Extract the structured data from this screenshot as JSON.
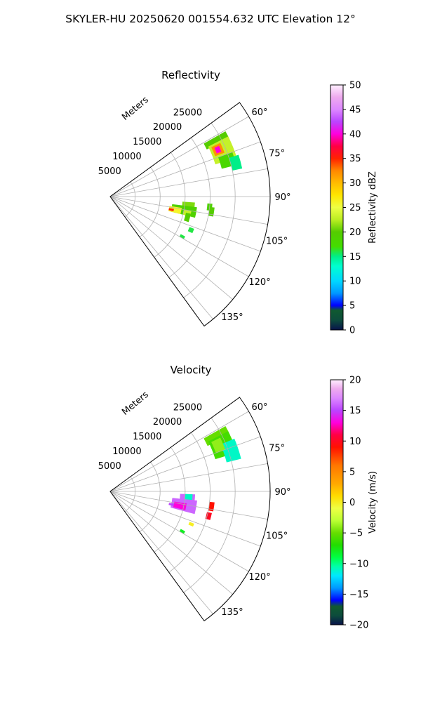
{
  "suptitle": "SKYLER-HU  20250620  001554.632 UTC Elevation 12°",
  "colors": {
    "grid": "#b0b0b0",
    "axis": "#000000"
  },
  "chart_data": [
    {
      "type": "polar-sector",
      "title": "Reflectivity",
      "range_label": "Meters",
      "radial_ticks": [
        5000,
        10000,
        15000,
        20000,
        25000
      ],
      "radial_max": 32000,
      "theta_range_deg": [
        54,
        144
      ],
      "theta_ticks": [
        "60°",
        "75°",
        "90°",
        "105°",
        "120°",
        "135°"
      ],
      "theta_tick_values": [
        60,
        75,
        90,
        105,
        120,
        135
      ],
      "grid": true,
      "colorbar": {
        "label": "Reflectivity dBZ",
        "min": 0,
        "max": 50,
        "ticks": [
          "0",
          "5",
          "10",
          "15",
          "20",
          "25",
          "30",
          "35",
          "40",
          "45",
          "50"
        ],
        "stops": [
          [
            0,
            "#08134a"
          ],
          [
            2,
            "#0d4c3c"
          ],
          [
            4,
            "#105a30"
          ],
          [
            5,
            "#0000ff"
          ],
          [
            7.5,
            "#0099ff"
          ],
          [
            10,
            "#00d8ff"
          ],
          [
            13,
            "#00ffd0"
          ],
          [
            15,
            "#00ee88"
          ],
          [
            17,
            "#44dd00"
          ],
          [
            20,
            "#55cc00"
          ],
          [
            22.5,
            "#bbee22"
          ],
          [
            25,
            "#eeff44"
          ],
          [
            27.5,
            "#ffe600"
          ],
          [
            30,
            "#ffbb00"
          ],
          [
            32.5,
            "#ff8800"
          ],
          [
            35,
            "#ff2200"
          ],
          [
            37.5,
            "#ff0044"
          ],
          [
            40,
            "#ff00dd"
          ],
          [
            42.5,
            "#bb44ff"
          ],
          [
            45,
            "#dd88ff"
          ],
          [
            47.5,
            "#eeaaee"
          ],
          [
            50,
            "#fff0ff"
          ]
        ]
      },
      "echoes": [
        {
          "az": [
            60.5,
            64
          ],
          "r": [
            21500,
            26500
          ],
          "value": 20
        },
        {
          "az": [
            63,
            73
          ],
          "r": [
            22000,
            26500
          ],
          "value": 23
        },
        {
          "az": [
            64,
            69
          ],
          "r": [
            22500,
            24500
          ],
          "value": 32
        },
        {
          "az": [
            65,
            68
          ],
          "r": [
            23000,
            24000
          ],
          "value": 40
        },
        {
          "az": [
            70,
            76
          ],
          "r": [
            23000,
            26000
          ],
          "value": 18
        },
        {
          "az": [
            72,
            78
          ],
          "r": [
            25000,
            27000
          ],
          "value": 15
        },
        {
          "az": [
            94,
            99
          ],
          "r": [
            14500,
            17000
          ],
          "value": 21
        },
        {
          "az": [
            97,
            104
          ],
          "r": [
            12500,
            17500
          ],
          "value": 19
        },
        {
          "az": [
            99,
            104
          ],
          "r": [
            12000,
            14500
          ],
          "value": 26
        },
        {
          "az": [
            101,
            103
          ],
          "r": [
            12000,
            13000
          ],
          "value": 35
        },
        {
          "az": [
            100,
            104
          ],
          "r": [
            15000,
            16500
          ],
          "value": 23
        },
        {
          "az": [
            102,
            108
          ],
          "r": [
            15500,
            16500
          ],
          "value": 20
        },
        {
          "az": [
            94,
            98
          ],
          "r": [
            19500,
            20500
          ],
          "value": 19
        },
        {
          "az": [
            96,
            101
          ],
          "r": [
            20000,
            21000
          ],
          "value": 20
        },
        {
          "az": [
            111,
            114
          ],
          "r": [
            17000,
            18000
          ],
          "value": 16
        },
        {
          "az": [
            118,
            120
          ],
          "r": [
            16000,
            17000
          ],
          "value": 16
        }
      ]
    },
    {
      "type": "polar-sector",
      "title": "Velocity",
      "range_label": "Meters",
      "radial_ticks": [
        5000,
        10000,
        15000,
        20000,
        25000
      ],
      "radial_max": 32000,
      "theta_range_deg": [
        54,
        144
      ],
      "theta_ticks": [
        "60°",
        "75°",
        "90°",
        "105°",
        "120°",
        "135°"
      ],
      "theta_tick_values": [
        60,
        75,
        90,
        105,
        120,
        135
      ],
      "grid": true,
      "colorbar": {
        "label": "Velocity (m/s)",
        "min": -20,
        "max": 20,
        "ticks": [
          "−20",
          "−15",
          "−10",
          "−5",
          "0",
          "5",
          "10",
          "15",
          "20"
        ],
        "stops": [
          [
            -20,
            "#08134a"
          ],
          [
            -18.5,
            "#0d4c3c"
          ],
          [
            -17,
            "#105a30"
          ],
          [
            -16,
            "#0000ff"
          ],
          [
            -14,
            "#0099ff"
          ],
          [
            -12,
            "#00e8ff"
          ],
          [
            -10.5,
            "#00ffaa"
          ],
          [
            -9,
            "#00ff44"
          ],
          [
            -7,
            "#22dd00"
          ],
          [
            -5,
            "#66dd00"
          ],
          [
            -3,
            "#bbff33"
          ],
          [
            -1,
            "#eeff44"
          ],
          [
            1,
            "#ffdd00"
          ],
          [
            3,
            "#ffaa00"
          ],
          [
            6,
            "#ff7700"
          ],
          [
            9,
            "#ff1100"
          ],
          [
            11,
            "#ff0044"
          ],
          [
            13,
            "#ff00dd"
          ],
          [
            15,
            "#bb44ff"
          ],
          [
            17,
            "#dd88ff"
          ],
          [
            18.5,
            "#eeaaee"
          ],
          [
            20,
            "#fff0ff"
          ]
        ]
      },
      "echoes": [
        {
          "az": [
            60.5,
            65
          ],
          "r": [
            21500,
            26500
          ],
          "value": -5
        },
        {
          "az": [
            63,
            73
          ],
          "r": [
            22000,
            26500
          ],
          "value": -6
        },
        {
          "az": [
            67,
            76
          ],
          "r": [
            24000,
            27000
          ],
          "value": -11
        },
        {
          "az": [
            64,
            70
          ],
          "r": [
            22500,
            24500
          ],
          "value": -4
        },
        {
          "az": [
            92,
            97
          ],
          "r": [
            14000,
            17000
          ],
          "value": 16
        },
        {
          "az": [
            92,
            96
          ],
          "r": [
            15000,
            16500
          ],
          "value": -11
        },
        {
          "az": [
            96,
            105
          ],
          "r": [
            12500,
            17500
          ],
          "value": 16
        },
        {
          "az": [
            99,
            104
          ],
          "r": [
            13000,
            15500
          ],
          "value": 13
        },
        {
          "az": [
            101,
            103
          ],
          "r": [
            12000,
            13000
          ],
          "value": 15
        },
        {
          "az": [
            96,
            101
          ],
          "r": [
            20000,
            21000
          ],
          "value": 9
        },
        {
          "az": [
            102,
            106
          ],
          "r": [
            19800,
            20800
          ],
          "value": 10
        },
        {
          "az": [
            111,
            113
          ],
          "r": [
            17000,
            18000
          ],
          "value": 0
        },
        {
          "az": [
            118,
            120
          ],
          "r": [
            16000,
            17000
          ],
          "value": -8
        }
      ]
    }
  ]
}
